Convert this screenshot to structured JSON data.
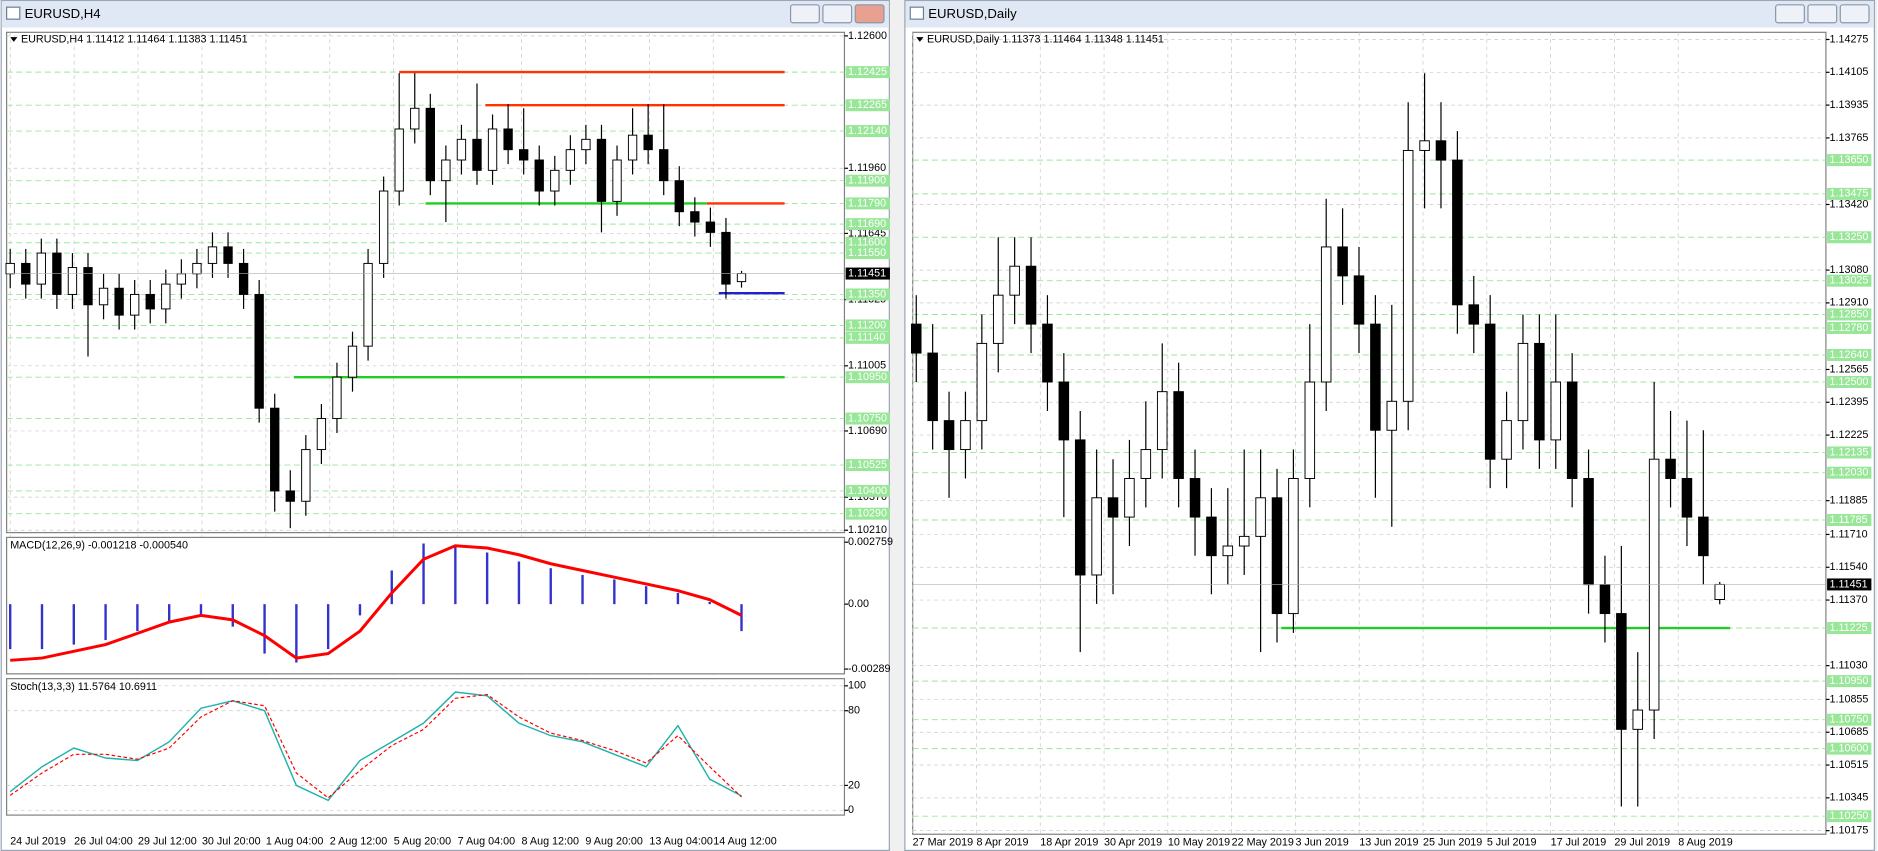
{
  "windows": [
    {
      "title": "EURUSD,H4",
      "header": "EURUSD,H4  1.11412 1.11464 1.11383 1.11451",
      "ylim": [
        1.1021,
        1.126
      ],
      "price_ticks": [
        {
          "value": 1.126,
          "label": "1.12600"
        },
        {
          "value": 1.1196,
          "label": "1.11960"
        },
        {
          "value": 1.11645,
          "label": "1.11645"
        },
        {
          "value": 1.11325,
          "label": "1.11325"
        },
        {
          "value": 1.11005,
          "label": "1.11005"
        },
        {
          "value": 1.1069,
          "label": "1.10690"
        },
        {
          "value": 1.1037,
          "label": "1.10370"
        },
        {
          "value": 1.1021,
          "label": "1.10210"
        }
      ],
      "levels": [
        {
          "value": 1.12425,
          "label": "1.12425"
        },
        {
          "value": 1.12265,
          "label": "1.12265"
        },
        {
          "value": 1.1214,
          "label": "1.12140"
        },
        {
          "value": 1.119,
          "label": "1.11900"
        },
        {
          "value": 1.1179,
          "label": "1.11790"
        },
        {
          "value": 1.1169,
          "label": "1.11690"
        },
        {
          "value": 1.116,
          "label": "1.11600"
        },
        {
          "value": 1.1155,
          "label": "1.11550"
        },
        {
          "value": 1.1135,
          "label": "1.11350"
        },
        {
          "value": 1.112,
          "label": "1.11200"
        },
        {
          "value": 1.1114,
          "label": "1.11140"
        },
        {
          "value": 1.1095,
          "label": "1.10950"
        },
        {
          "value": 1.1075,
          "label": "1.10750"
        },
        {
          "value": 1.10525,
          "label": "1.10525"
        },
        {
          "value": 1.104,
          "label": "1.10400"
        },
        {
          "value": 1.1029,
          "label": "1.10290"
        }
      ],
      "current": {
        "value": 1.11451,
        "label": "1.11451"
      },
      "time_labels": [
        "24 Jul 2019",
        "26 Jul 04:00",
        "29 Jul 12:00",
        "30 Jul 20:00",
        "1 Aug 04:00",
        "2 Aug 12:00",
        "5 Aug 20:00",
        "7 Aug 04:00",
        "8 Aug 12:00",
        "9 Aug 20:00",
        "13 Aug 04:00",
        "14 Aug 12:00"
      ],
      "candles": [
        [
          1.1145,
          1.1157,
          1.1138,
          1.115
        ],
        [
          1.115,
          1.1157,
          1.1133,
          1.114
        ],
        [
          1.114,
          1.1162,
          1.1133,
          1.1155
        ],
        [
          1.1155,
          1.1162,
          1.1128,
          1.1135
        ],
        [
          1.1135,
          1.1155,
          1.1128,
          1.1148
        ],
        [
          1.1148,
          1.1155,
          1.1105,
          1.113
        ],
        [
          1.113,
          1.1145,
          1.1123,
          1.1138
        ],
        [
          1.1138,
          1.1145,
          1.1118,
          1.1125
        ],
        [
          1.1125,
          1.1142,
          1.1118,
          1.1135
        ],
        [
          1.1135,
          1.1142,
          1.1121,
          1.1128
        ],
        [
          1.1128,
          1.1147,
          1.1121,
          1.114
        ],
        [
          1.114,
          1.1152,
          1.1133,
          1.1145
        ],
        [
          1.1145,
          1.1157,
          1.1138,
          1.115
        ],
        [
          1.115,
          1.1165,
          1.1143,
          1.1158
        ],
        [
          1.1158,
          1.1165,
          1.1143,
          1.115
        ],
        [
          1.115,
          1.1157,
          1.1128,
          1.1135
        ],
        [
          1.1135,
          1.1142,
          1.1073,
          1.108
        ],
        [
          1.108,
          1.1087,
          1.103,
          1.104
        ],
        [
          1.104,
          1.105,
          1.1022,
          1.1035
        ],
        [
          1.1035,
          1.1067,
          1.1028,
          1.106
        ],
        [
          1.106,
          1.1082,
          1.1053,
          1.1075
        ],
        [
          1.1075,
          1.1102,
          1.1068,
          1.1095
        ],
        [
          1.1095,
          1.1117,
          1.1088,
          1.111
        ],
        [
          1.111,
          1.1157,
          1.1103,
          1.115
        ],
        [
          1.115,
          1.1192,
          1.1143,
          1.1185
        ],
        [
          1.1185,
          1.1242,
          1.1178,
          1.1215
        ],
        [
          1.1215,
          1.1242,
          1.1208,
          1.1225
        ],
        [
          1.1225,
          1.1232,
          1.1183,
          1.119
        ],
        [
          1.119,
          1.1207,
          1.117,
          1.12
        ],
        [
          1.12,
          1.1217,
          1.1193,
          1.121
        ],
        [
          1.121,
          1.1237,
          1.1188,
          1.1195
        ],
        [
          1.1195,
          1.1222,
          1.1188,
          1.1215
        ],
        [
          1.1215,
          1.1227,
          1.1198,
          1.1205
        ],
        [
          1.1205,
          1.1225,
          1.1193,
          1.12
        ],
        [
          1.12,
          1.1207,
          1.1178,
          1.1185
        ],
        [
          1.1185,
          1.1202,
          1.1178,
          1.1195
        ],
        [
          1.1195,
          1.1212,
          1.1188,
          1.1205
        ],
        [
          1.1205,
          1.1217,
          1.1198,
          1.121
        ],
        [
          1.121,
          1.1217,
          1.1165,
          1.118
        ],
        [
          1.118,
          1.1207,
          1.1173,
          1.12
        ],
        [
          1.12,
          1.1225,
          1.1193,
          1.1212
        ],
        [
          1.1212,
          1.1227,
          1.1198,
          1.1205
        ],
        [
          1.1205,
          1.1227,
          1.1183,
          1.119
        ],
        [
          1.119,
          1.1197,
          1.1168,
          1.1175
        ],
        [
          1.1175,
          1.1182,
          1.1163,
          1.117
        ],
        [
          1.117,
          1.1177,
          1.1158,
          1.1165
        ],
        [
          1.1165,
          1.1172,
          1.1133,
          1.114
        ],
        [
          1.11412,
          1.11464,
          1.11383,
          1.11451
        ]
      ],
      "lines": [
        {
          "value": 1.12425,
          "color": "#ff3300"
        },
        {
          "value": 1.12265,
          "color": "#ff3300"
        },
        {
          "value": 1.1179,
          "color": "#22cc22"
        },
        {
          "value": 1.1179,
          "color": "#ff3300"
        },
        {
          "value": 1.1095,
          "color": "#22cc22"
        },
        {
          "value": 1.11356,
          "color": "#2222cc"
        }
      ],
      "macd": {
        "label": "MACD(12,26,9) -0.001218 -0.000540",
        "ylim": [
          -0.00289,
          0.002759
        ],
        "ticks": [
          0.002759,
          {
            "value": 0,
            "label": "0.00"
          },
          -0.00289
        ],
        "histogram": [
          -0.002,
          -0.002,
          -0.0018,
          -0.0016,
          -0.0012,
          -0.0008,
          -0.0005,
          -0.001,
          -0.0022,
          -0.0026,
          -0.002,
          -0.0005,
          0.0015,
          0.0027,
          0.0026,
          0.0023,
          0.0019,
          0.0016,
          0.0013,
          0.0011,
          0.0008,
          0.0005,
          0.0001,
          -0.0012
        ],
        "histogram_color": "#3333cc",
        "signal": [
          -0.0025,
          -0.0024,
          -0.0021,
          -0.0018,
          -0.0013,
          -0.0008,
          -0.0005,
          -0.0007,
          -0.0014,
          -0.0024,
          -0.0022,
          -0.0012,
          0.0005,
          0.002,
          0.0026,
          0.0025,
          0.0022,
          0.0018,
          0.0015,
          0.0012,
          0.0009,
          0.0006,
          0.0002,
          -0.0005
        ],
        "signal_color": "#ff0000"
      },
      "stoch": {
        "label": "Stoch(13,3,3) 11.5764 10.6911",
        "ylim": [
          0,
          100
        ],
        "ticks": [
          100,
          80,
          20,
          0
        ],
        "main": [
          15,
          35,
          50,
          42,
          40,
          55,
          82,
          88,
          80,
          20,
          8,
          40,
          55,
          70,
          95,
          92,
          70,
          60,
          55,
          45,
          35,
          68,
          25,
          11.5764
        ],
        "main_color": "#20b2aa",
        "signal": [
          12,
          30,
          45,
          45,
          41,
          50,
          75,
          88,
          84,
          30,
          10,
          32,
          52,
          65,
          90,
          93,
          75,
          62,
          56,
          48,
          38,
          60,
          35,
          10.6911
        ],
        "signal_color": "#ff0000"
      }
    },
    {
      "title": "EURUSD,Daily",
      "header": "EURUSD,Daily  1.11373 1.11464 1.11348 1.11451",
      "ylim": [
        1.10175,
        1.14275
      ],
      "price_ticks": [
        {
          "value": 1.14275,
          "label": "1.14275"
        },
        {
          "value": 1.14105,
          "label": "1.14105"
        },
        {
          "value": 1.13935,
          "label": "1.13935"
        },
        {
          "value": 1.13765,
          "label": "1.13765"
        },
        {
          "value": 1.1342,
          "label": "1.13420"
        },
        {
          "value": 1.1308,
          "label": "1.13080"
        },
        {
          "value": 1.1291,
          "label": "1.12910"
        },
        {
          "value": 1.12565,
          "label": "1.12565"
        },
        {
          "value": 1.12395,
          "label": "1.12395"
        },
        {
          "value": 1.12225,
          "label": "1.12225"
        },
        {
          "value": 1.11885,
          "label": "1.11885"
        },
        {
          "value": 1.1171,
          "label": "1.11710"
        },
        {
          "value": 1.1154,
          "label": "1.11540"
        },
        {
          "value": 1.1137,
          "label": "1.11370"
        },
        {
          "value": 1.1103,
          "label": "1.11030"
        },
        {
          "value": 1.10855,
          "label": "1.10855"
        },
        {
          "value": 1.10685,
          "label": "1.10685"
        },
        {
          "value": 1.10515,
          "label": "1.10515"
        },
        {
          "value": 1.10345,
          "label": "1.10345"
        },
        {
          "value": 1.10175,
          "label": "1.10175"
        }
      ],
      "levels": [
        {
          "value": 1.1365,
          "label": "1.13650"
        },
        {
          "value": 1.13475,
          "label": "1.13475"
        },
        {
          "value": 1.1325,
          "label": "1.13250"
        },
        {
          "value": 1.13025,
          "label": "1.13025"
        },
        {
          "value": 1.1285,
          "label": "1.12850"
        },
        {
          "value": 1.1278,
          "label": "1.12780"
        },
        {
          "value": 1.1264,
          "label": "1.12640"
        },
        {
          "value": 1.125,
          "label": "1.12500"
        },
        {
          "value": 1.12135,
          "label": "1.12135"
        },
        {
          "value": 1.1203,
          "label": "1.12030"
        },
        {
          "value": 1.11785,
          "label": "1.11785"
        },
        {
          "value": 1.11225,
          "label": "1.11225"
        },
        {
          "value": 1.1095,
          "label": "1.10950"
        },
        {
          "value": 1.1075,
          "label": "1.10750"
        },
        {
          "value": 1.106,
          "label": "1.10600"
        },
        {
          "value": 1.1025,
          "label": "1.10250"
        }
      ],
      "current": {
        "value": 1.11451,
        "label": "1.11451"
      },
      "time_labels": [
        "27 Mar 2019",
        "8 Apr 2019",
        "18 Apr 2019",
        "30 Apr 2019",
        "10 May 2019",
        "22 May 2019",
        "3 Jun 2019",
        "13 Jun 2019",
        "25 Jun 2019",
        "5 Jul 2019",
        "17 Jul 2019",
        "29 Jul 2019",
        "8 Aug 2019"
      ],
      "candles": [
        [
          1.128,
          1.1295,
          1.125,
          1.1265
        ],
        [
          1.1265,
          1.128,
          1.1215,
          1.123
        ],
        [
          1.123,
          1.1245,
          1.119,
          1.1215
        ],
        [
          1.1215,
          1.1245,
          1.12,
          1.123
        ],
        [
          1.123,
          1.1285,
          1.1215,
          1.127
        ],
        [
          1.127,
          1.1325,
          1.1255,
          1.1295
        ],
        [
          1.1295,
          1.1325,
          1.128,
          1.131
        ],
        [
          1.131,
          1.1325,
          1.1265,
          1.128
        ],
        [
          1.128,
          1.1295,
          1.1235,
          1.125
        ],
        [
          1.125,
          1.1265,
          1.118,
          1.122
        ],
        [
          1.122,
          1.1235,
          1.111,
          1.115
        ],
        [
          1.115,
          1.1215,
          1.1135,
          1.119
        ],
        [
          1.119,
          1.121,
          1.114,
          1.118
        ],
        [
          1.118,
          1.122,
          1.1165,
          1.12
        ],
        [
          1.12,
          1.124,
          1.1185,
          1.1215
        ],
        [
          1.1215,
          1.127,
          1.12,
          1.1245
        ],
        [
          1.1245,
          1.126,
          1.1185,
          1.12
        ],
        [
          1.12,
          1.1215,
          1.116,
          1.118
        ],
        [
          1.118,
          1.1195,
          1.114,
          1.116
        ],
        [
          1.116,
          1.1195,
          1.1145,
          1.1165
        ],
        [
          1.1165,
          1.1215,
          1.115,
          1.117
        ],
        [
          1.117,
          1.1215,
          1.111,
          1.119
        ],
        [
          1.119,
          1.1205,
          1.1115,
          1.113
        ],
        [
          1.113,
          1.1215,
          1.112,
          1.12
        ],
        [
          1.12,
          1.128,
          1.1185,
          1.125
        ],
        [
          1.125,
          1.1345,
          1.1235,
          1.132
        ],
        [
          1.132,
          1.134,
          1.129,
          1.1305
        ],
        [
          1.1305,
          1.132,
          1.1265,
          1.128
        ],
        [
          1.128,
          1.1295,
          1.119,
          1.1225
        ],
        [
          1.1225,
          1.129,
          1.1175,
          1.124
        ],
        [
          1.124,
          1.1395,
          1.1225,
          1.137
        ],
        [
          1.137,
          1.141,
          1.134,
          1.1375
        ],
        [
          1.1375,
          1.1395,
          1.134,
          1.1365
        ],
        [
          1.1365,
          1.138,
          1.1275,
          1.129
        ],
        [
          1.129,
          1.1305,
          1.1265,
          1.128
        ],
        [
          1.128,
          1.1295,
          1.1195,
          1.121
        ],
        [
          1.121,
          1.1245,
          1.1195,
          1.123
        ],
        [
          1.123,
          1.1285,
          1.1215,
          1.127
        ],
        [
          1.127,
          1.1285,
          1.1205,
          1.122
        ],
        [
          1.122,
          1.1285,
          1.1205,
          1.125
        ],
        [
          1.125,
          1.1265,
          1.1185,
          1.12
        ],
        [
          1.12,
          1.1215,
          1.113,
          1.1145
        ],
        [
          1.1145,
          1.116,
          1.1115,
          1.113
        ],
        [
          1.113,
          1.1165,
          1.103,
          1.107
        ],
        [
          1.107,
          1.111,
          1.103,
          1.108
        ],
        [
          1.108,
          1.125,
          1.1065,
          1.121
        ],
        [
          1.121,
          1.1235,
          1.1185,
          1.12
        ],
        [
          1.12,
          1.123,
          1.1165,
          1.118
        ],
        [
          1.118,
          1.1225,
          1.1145,
          1.116
        ],
        [
          1.11373,
          1.11464,
          1.11348,
          1.11451
        ]
      ],
      "lines": [
        {
          "value": 1.11225,
          "color": "#22cc22"
        }
      ]
    }
  ]
}
